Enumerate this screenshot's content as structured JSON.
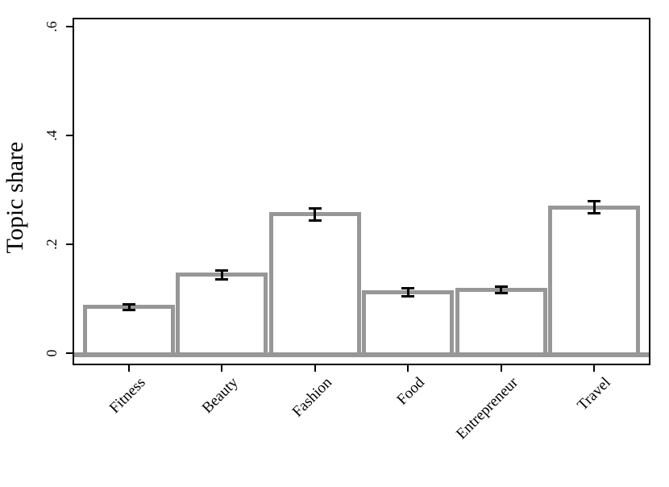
{
  "chart_data": {
    "type": "bar",
    "categories": [
      "Fitness",
      "Beauty",
      "Fashion",
      "Food",
      "Entrepreneur",
      "Travel"
    ],
    "values": [
      0.085,
      0.144,
      0.255,
      0.112,
      0.116,
      0.268
    ],
    "error_margins": [
      0.006,
      0.009,
      0.012,
      0.008,
      0.007,
      0.012
    ],
    "title": "",
    "xlabel": "",
    "ylabel": "Topic share",
    "ylim": [
      0,
      0.62
    ],
    "yticks": [
      {
        "value": 0.0,
        "label": "0"
      },
      {
        "value": 0.2,
        "label": ".2"
      },
      {
        "value": 0.4,
        "label": ".4"
      },
      {
        "value": 0.6,
        "label": ".6"
      }
    ],
    "grid": false,
    "legend": "none",
    "bar_style": "hollow-with-error-bars"
  },
  "colors": {
    "bar_fill": "#ffffff",
    "bar_border": "#979797",
    "zero_line": "#979797",
    "error_bar": "#000000",
    "axis": "#000000",
    "background": "#ffffff",
    "text": "#000000"
  }
}
